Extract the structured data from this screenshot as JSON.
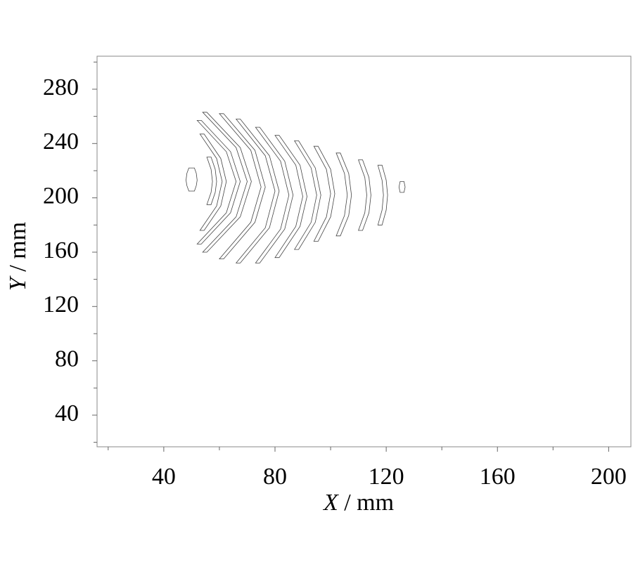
{
  "chart_data": {
    "type": "contour",
    "x_label_symbol": "X",
    "x_label_unit": " / mm",
    "y_label_symbol": "Y",
    "y_label_unit": " / mm",
    "xlim": [
      16,
      208
    ],
    "ylim": [
      16.7,
      304.3
    ],
    "xticks": [
      40,
      80,
      120,
      160,
      200
    ],
    "yticks": [
      40,
      80,
      120,
      160,
      200,
      240,
      280
    ],
    "minor_xticks": [
      20,
      60,
      100,
      140,
      180
    ],
    "minor_yticks": [
      20,
      60,
      100,
      140,
      180,
      220,
      260,
      300
    ],
    "color": "#444444",
    "contours": [
      {
        "x": [
          49,
          48.3,
          48,
          48.3,
          49,
          51,
          51.7,
          52,
          51.7,
          51
        ],
        "y": [
          222,
          218,
          213,
          209,
          205,
          205,
          209,
          213,
          218,
          222
        ]
      },
      {
        "x": [
          55.5,
          57,
          57.5,
          57,
          55.5,
          57,
          58.5,
          59,
          58.5,
          57
        ],
        "y": [
          230,
          221,
          212,
          204,
          195,
          195,
          204,
          212,
          221,
          230
        ]
      },
      {
        "x": [
          53,
          59,
          61,
          59,
          53,
          54.5,
          60.5,
          62.5,
          60.5,
          54.5
        ],
        "y": [
          247,
          229,
          212,
          194,
          176,
          176,
          194,
          212,
          229,
          247
        ]
      },
      {
        "x": [
          52,
          62.5,
          66,
          62.5,
          52,
          53.5,
          64,
          67.5,
          64,
          53.5
        ],
        "y": [
          257,
          234,
          212,
          189,
          166,
          166,
          189,
          212,
          234,
          257
        ]
      },
      {
        "x": [
          54,
          66,
          70,
          66,
          54,
          55.5,
          67.5,
          71.5,
          67.5,
          55.5
        ],
        "y": [
          263,
          237,
          212,
          186,
          160,
          160,
          186,
          212,
          237,
          263
        ]
      },
      {
        "x": [
          60,
          71.3,
          75,
          71.3,
          60,
          61.5,
          72.8,
          76.5,
          72.8,
          61.5
        ],
        "y": [
          262,
          235,
          208,
          182,
          155,
          155,
          182,
          208,
          235,
          262
        ]
      },
      {
        "x": [
          66,
          76.5,
          80,
          76.5,
          66,
          67.5,
          78,
          81.5,
          78,
          67.5
        ],
        "y": [
          258,
          231,
          205,
          178,
          152,
          152,
          178,
          205,
          231,
          258
        ]
      },
      {
        "x": [
          73,
          82,
          85,
          82,
          73,
          74.5,
          83.5,
          86.5,
          83.5,
          74.5
        ],
        "y": [
          252,
          227,
          202,
          177,
          152,
          152,
          177,
          202,
          227,
          252
        ]
      },
      {
        "x": [
          80,
          87.5,
          90,
          87.5,
          80,
          81.5,
          89,
          91.5,
          89,
          81.5
        ],
        "y": [
          246,
          224,
          201,
          179,
          156,
          156,
          179,
          201,
          224,
          246
        ]
      },
      {
        "x": [
          87,
          93,
          95,
          93,
          87,
          88.5,
          94.5,
          96.5,
          94.5,
          88.5
        ],
        "y": [
          242,
          222,
          202,
          182,
          162,
          162,
          182,
          202,
          222,
          242
        ]
      },
      {
        "x": [
          94,
          98.5,
          100,
          98.5,
          94,
          95.5,
          100,
          101.5,
          100,
          95.5
        ],
        "y": [
          238,
          221,
          203,
          186,
          168,
          168,
          186,
          203,
          221,
          238
        ]
      },
      {
        "x": [
          102,
          105,
          106,
          105,
          102,
          103.5,
          106.5,
          107.5,
          106.5,
          103.5
        ],
        "y": [
          233,
          218,
          202,
          187,
          172,
          172,
          187,
          202,
          218,
          233
        ]
      },
      {
        "x": [
          110,
          112.3,
          113,
          112.3,
          110,
          111.5,
          113.8,
          114.5,
          113.8,
          111.5
        ],
        "y": [
          228,
          215,
          202,
          189,
          176,
          176,
          189,
          202,
          215,
          228
        ]
      },
      {
        "x": [
          117,
          118.5,
          119,
          118.5,
          117,
          118.5,
          120,
          120.5,
          120,
          118.5
        ],
        "y": [
          224,
          213,
          202,
          191,
          180,
          180,
          191,
          202,
          213,
          224
        ]
      },
      {
        "x": [
          125,
          124.6,
          125,
          126.4,
          126.8,
          126.4
        ],
        "y": [
          212,
          208,
          204,
          204,
          208,
          212
        ]
      }
    ]
  }
}
